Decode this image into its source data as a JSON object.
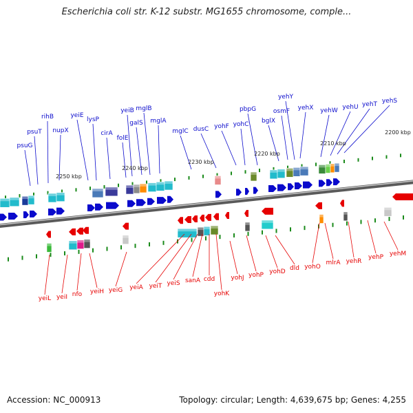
{
  "title": "Escherichia coli str. K-12 substr. MG1655 chromosome, comple...",
  "footer": {
    "accession": "Accession: NC_000913",
    "topology": "Topology: circular; Length: 4,639,675 bp; Genes: 4,255"
  },
  "colors": {
    "forward": "#0a0acc",
    "reverse": "#e60000",
    "backbone": "#8a8a8a",
    "tick": "#1a8a1a"
  },
  "kbp_labels": [
    "2250 kbp",
    "2240 kbp",
    "2230 kbp",
    "2220 kbp",
    "2210 kbp",
    "2200 kbp"
  ],
  "forward_genes": [
    "psuG",
    "psuT",
    "rihB",
    "nupX",
    "yeiE",
    "lysP",
    "cirA",
    "folE",
    "yeiB",
    "galS",
    "mglB",
    "mglA",
    "mglC",
    "dusC",
    "yohF",
    "yohC",
    "pbpG",
    "bglX",
    "osmF",
    "yehY",
    "yehX",
    "yehW",
    "yehU",
    "yehT",
    "yehS"
  ],
  "reverse_genes": [
    "yeiL",
    "yeiI",
    "nfo",
    "yeiH",
    "yeiG",
    "yeiA",
    "yeiT",
    "yeiS",
    "sanA",
    "cdd",
    "yohK",
    "yohJ",
    "yohP",
    "yohD",
    "dld",
    "yohO",
    "mlrA",
    "yehR",
    "yehP",
    "yehM"
  ]
}
